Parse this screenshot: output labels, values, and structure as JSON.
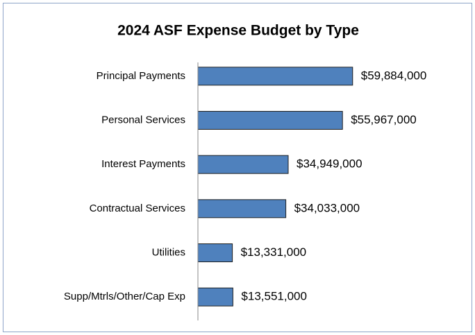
{
  "chart_data": {
    "type": "hbar",
    "title": "2024 ASF Expense Budget by Type",
    "categories": [
      "Principal Payments",
      "Personal Services",
      "Interest Payments",
      "Contractual Services",
      "Utilities",
      "Supp/Mtrls/Other/Cap Exp"
    ],
    "values": [
      59884000,
      55967000,
      34949000,
      34033000,
      13331000,
      13551000
    ],
    "value_labels": [
      "$59,884,000",
      "$55,967,000",
      "$34,949,000",
      "$34,033,000",
      "$13,331,000",
      "$13,551,000"
    ],
    "color": "#4f81bd",
    "xlim": [
      0,
      100000000
    ]
  }
}
